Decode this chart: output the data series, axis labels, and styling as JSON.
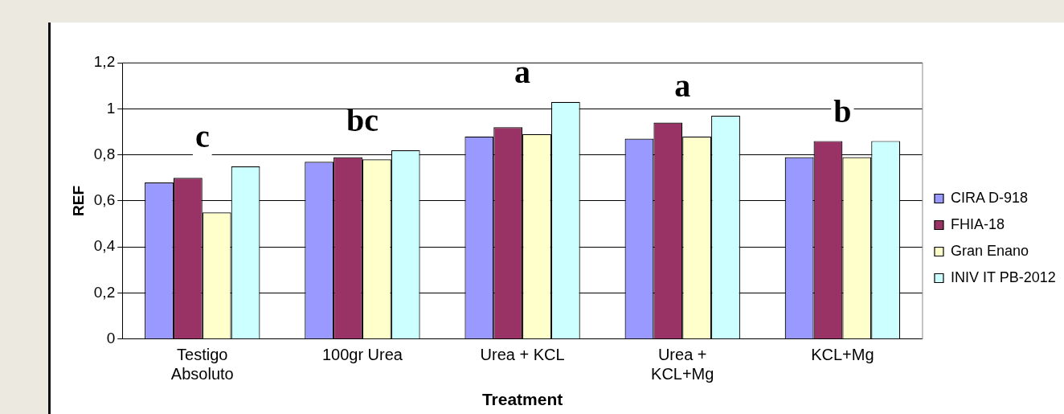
{
  "chart_data": {
    "type": "bar",
    "xlabel": "Treatment",
    "ylabel": "REF",
    "categories": [
      "Testigo Absoluto",
      "100gr Urea",
      "Urea + KCL",
      "Urea + KCL+Mg",
      "KCL+Mg"
    ],
    "series": [
      {
        "name": "CIRA D-918",
        "color": "#9999ff",
        "values": [
          0.68,
          0.77,
          0.88,
          0.87,
          0.79
        ]
      },
      {
        "name": "FHIA-18",
        "color": "#993366",
        "values": [
          0.7,
          0.79,
          0.92,
          0.94,
          0.86
        ]
      },
      {
        "name": "Gran Enano",
        "color": "#ffffcc",
        "values": [
          0.55,
          0.78,
          0.89,
          0.88,
          0.79
        ]
      },
      {
        "name": "INIV IT PB-2012",
        "color": "#ccffff",
        "values": [
          0.75,
          0.82,
          1.03,
          0.97,
          0.86
        ]
      }
    ],
    "ylim": [
      0,
      1.2
    ],
    "yticks": [
      0,
      {
        "value": 0.2,
        "label": "0,2"
      },
      {
        "value": 0.4,
        "label": "0,4"
      },
      {
        "value": 0.6,
        "label": "0,6"
      },
      {
        "value": 0.8,
        "label": "0,8"
      },
      1,
      {
        "value": 1.2,
        "label": "1,2"
      }
    ],
    "grid": "y",
    "legend": "right",
    "annotations": [
      "c",
      "bc",
      "a",
      "a",
      "b"
    ]
  }
}
